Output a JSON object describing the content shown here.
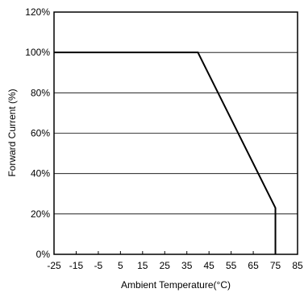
{
  "chart_data": {
    "type": "line",
    "xlabel": "Ambient Temperature(°C)",
    "ylabel": "Forward Current (%)",
    "xlim": [
      -25,
      85
    ],
    "ylim": [
      0,
      120
    ],
    "x_ticks": [
      "-25",
      "-15",
      "-5",
      "5",
      "15",
      "25",
      "35",
      "45",
      "55",
      "65",
      "75",
      "85"
    ],
    "y_ticks": [
      "0%",
      "20%",
      "40%",
      "60%",
      "80%",
      "100%",
      "120%"
    ],
    "grid": "horizontal",
    "series": [
      {
        "x": [
          -25,
          40,
          75,
          75
        ],
        "y": [
          100,
          100,
          23,
          0
        ]
      }
    ]
  }
}
